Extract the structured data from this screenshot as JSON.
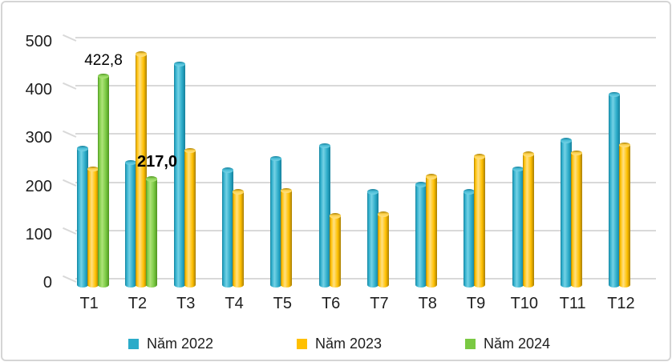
{
  "chart_data": {
    "type": "bar",
    "style": "3d-cylinder",
    "title": "",
    "categories": [
      "T1",
      "T2",
      "T3",
      "T4",
      "T5",
      "T6",
      "T7",
      "T8",
      "T9",
      "T10",
      "T11",
      "T12"
    ],
    "series": [
      {
        "name": "Năm 2022",
        "colors": {
          "main": "#2BABC9",
          "light": "#74D2E5",
          "dark": "#15809B",
          "cap": "#4ABDD7"
        },
        "values": [
          278,
          250,
          447,
          235,
          258,
          284,
          192,
          206,
          192,
          237,
          294,
          386
        ]
      },
      {
        "name": "Năm 2023",
        "colors": {
          "main": "#FFC000",
          "light": "#FFE083",
          "dark": "#A87E00",
          "cap": "#FFD34D"
        },
        "values": [
          237,
          467,
          274,
          192,
          194,
          144,
          147,
          222,
          262,
          267,
          269,
          285
        ]
      },
      {
        "name": "Năm 2024",
        "colors": {
          "main": "#7AC943",
          "light": "#AEE378",
          "dark": "#4E9420",
          "cap": "#90D65B"
        },
        "values": [
          422.8,
          217.0,
          null,
          null,
          null,
          null,
          null,
          null,
          null,
          null,
          null,
          null
        ]
      }
    ],
    "y_axis": {
      "min": 0,
      "max": 500,
      "tick_labels": [
        "500",
        "400",
        "300",
        "200",
        "100",
        "0"
      ]
    },
    "x_axis_labels": [
      "T1",
      "T2",
      "T3",
      "T4",
      "T5",
      "T6",
      "T7",
      "T8",
      "T9",
      "T10",
      "T11",
      "T12"
    ],
    "annotations": [
      {
        "text": "422,8",
        "category": "T1",
        "series": "Năm 2024"
      },
      {
        "text": "217,0",
        "category": "T2",
        "series": "Năm 2024"
      }
    ],
    "legend": {
      "position": "bottom",
      "entries": [
        "Năm 2022",
        "Năm 2023",
        "Năm 2024"
      ]
    },
    "grid": true,
    "gridline_color": "#D9D9D9",
    "frame_border_color": "#D5D5D5",
    "background": "#FFFFFF",
    "text_color": "#1E1E1E"
  }
}
